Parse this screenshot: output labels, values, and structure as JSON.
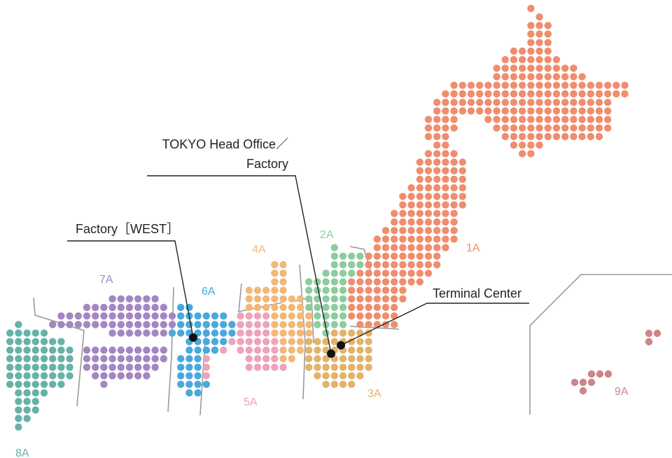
{
  "callouts": {
    "tokyo_line1": "TOKYO Head Office／",
    "tokyo_line2": "Factory",
    "west": "Factory［WEST］",
    "terminal": "Terminal Center"
  },
  "regions": {
    "r1": {
      "label": "1A",
      "color": "#ee8e6f"
    },
    "r2": {
      "label": "2A",
      "color": "#8ccc9f"
    },
    "r3": {
      "label": "3A",
      "color": "#e2b36c"
    },
    "r4": {
      "label": "4A",
      "color": "#f2b879"
    },
    "r5": {
      "label": "5A",
      "color": "#eda3b9"
    },
    "r6": {
      "label": "6A",
      "color": "#4aa8dc"
    },
    "r7": {
      "label": "7A",
      "color": "#a386c2"
    },
    "r8": {
      "label": "8A",
      "color": "#67b2a8"
    },
    "r9": {
      "label": "9A",
      "color": "#cd8588"
    }
  },
  "colors": {
    "border_line": "#9a9a9a",
    "callout_line": "#222222",
    "marker": "#111111"
  }
}
